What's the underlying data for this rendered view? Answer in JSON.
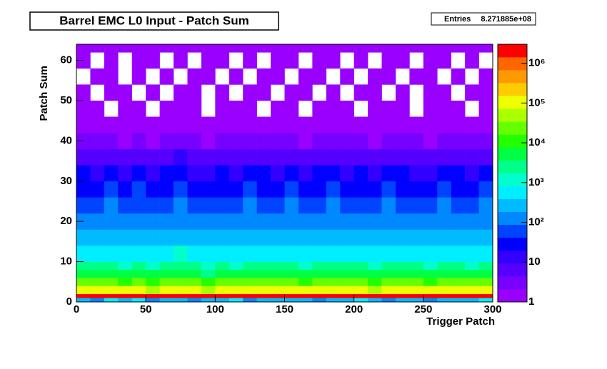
{
  "chart_data": {
    "type": "heatmap",
    "title": "Barrel EMC L0 Input - Patch Sum",
    "stats_label": "Entries",
    "stats_value": "8.271885e+08",
    "xlabel": "Trigger Patch",
    "ylabel": "Patch Sum",
    "xlim": [
      0,
      300
    ],
    "ylim": [
      0,
      64
    ],
    "zlim": [
      1,
      3000000
    ],
    "zlog": true,
    "xticks": [
      0,
      50,
      100,
      150,
      200,
      250,
      300
    ],
    "yticks": [
      0,
      10,
      20,
      30,
      40,
      50,
      60
    ],
    "zticks": [
      1,
      10,
      {
        "value": 100,
        "label": "10²"
      },
      {
        "value": 1000,
        "label": "10³"
      },
      {
        "value": 10000,
        "label": "10⁴"
      },
      {
        "value": 100000,
        "label": "10⁵"
      },
      {
        "value": 1000000,
        "label": "10⁶"
      }
    ],
    "palette": [
      "#9900ff",
      "#7700ff",
      "#5500ff",
      "#3300ff",
      "#0000ff",
      "#0044ff",
      "#0088ff",
      "#00bbff",
      "#00eeff",
      "#00ffcc",
      "#00ff88",
      "#00ff44",
      "#22ff00",
      "#66ff00",
      "#aaff00",
      "#eeff00",
      "#ffcc00",
      "#ff9900",
      "#ff6600",
      "#ff0000"
    ],
    "xbins": [
      0,
      10,
      20,
      30,
      40,
      50,
      60,
      70,
      80,
      90,
      100,
      110,
      120,
      130,
      140,
      150,
      160,
      170,
      180,
      190,
      200,
      210,
      220,
      230,
      240,
      250,
      260,
      270,
      280,
      290,
      300
    ],
    "ybins": [
      0,
      1,
      2,
      4,
      6,
      8,
      10,
      14,
      18,
      22,
      26,
      30,
      34,
      38,
      42,
      46,
      50,
      54,
      58,
      62,
      64
    ],
    "values": [
      [
        300,
        150,
        400,
        200,
        500,
        120,
        300,
        250,
        180,
        350,
        220,
        400,
        160,
        300,
        260,
        200,
        380,
        150,
        300,
        240,
        500,
        200,
        180,
        300,
        260,
        150,
        350,
        220,
        300,
        400
      ],
      [
        2000000,
        1800000,
        2000000,
        1500000,
        2000000,
        2200000,
        1900000,
        2000000,
        1600000,
        2000000,
        2100000,
        1500000,
        2000000,
        1800000,
        2000000,
        1900000,
        2000000,
        1700000,
        2000000,
        2100000,
        1800000,
        2000000,
        1900000,
        2000000,
        1500000,
        2000000,
        1800000,
        2000000,
        1600000,
        2000000
      ],
      [
        100000,
        80000,
        120000,
        90000,
        110000,
        70000,
        100000,
        130000,
        90000,
        60000,
        100000,
        80000,
        120000,
        100000,
        90000,
        110000,
        80000,
        100000,
        120000,
        90000,
        100000,
        70000,
        110000,
        100000,
        90000,
        80000,
        120000,
        100000,
        90000,
        110000
      ],
      [
        20000,
        18000,
        25000,
        16000,
        22000,
        15000,
        20000,
        24000,
        18000,
        14000,
        21000,
        17000,
        23000,
        20000,
        18000,
        22000,
        16000,
        20000,
        24000,
        19000,
        21000,
        15000,
        22000,
        20000,
        18000,
        16000,
        23000,
        20000,
        17000,
        22000
      ],
      [
        5000,
        4500,
        6000,
        4000,
        5500,
        3800,
        5000,
        6000,
        4500,
        3500,
        5200,
        4200,
        5800,
        5000,
        4600,
        5400,
        4000,
        5000,
        6000,
        4800,
        5200,
        3800,
        5500,
        5000,
        4500,
        4000,
        5800,
        5000,
        4200,
        5400
      ],
      [
        2000,
        1800,
        2400,
        1600,
        2200,
        1500,
        2000,
        2400,
        1800,
        1400,
        2100,
        1700,
        2300,
        2000,
        1800,
        2200,
        1600,
        2000,
        2400,
        1900,
        2100,
        1500,
        2200,
        2000,
        1800,
        1600,
        2300,
        2000,
        1700,
        2200
      ],
      [
        700,
        600,
        800,
        550,
        750,
        500,
        700,
        850,
        600,
        480,
        720,
        580,
        800,
        700,
        620,
        760,
        560,
        700,
        820,
        660,
        720,
        520,
        760,
        700,
        620,
        560,
        800,
        700,
        580,
        760
      ],
      [
        300,
        260,
        350,
        240,
        320,
        220,
        300,
        360,
        260,
        200,
        310,
        250,
        340,
        300,
        270,
        330,
        240,
        300,
        350,
        280,
        310,
        220,
        330,
        300,
        270,
        240,
        340,
        300,
        250,
        330
      ],
      [
        150,
        130,
        170,
        120,
        160,
        110,
        150,
        180,
        130,
        100,
        155,
        125,
        170,
        150,
        135,
        165,
        120,
        150,
        175,
        140,
        155,
        110,
        165,
        150,
        135,
        120,
        170,
        150,
        125,
        165
      ],
      [
        80,
        70,
        90,
        65,
        85,
        60,
        80,
        95,
        70,
        55,
        82,
        66,
        90,
        80,
        72,
        88,
        64,
        80,
        92,
        75,
        82,
        60,
        88,
        80,
        72,
        64,
        90,
        80,
        66,
        88
      ],
      [
        40,
        35,
        45,
        32,
        42,
        30,
        40,
        48,
        35,
        28,
        41,
        33,
        45,
        40,
        36,
        44,
        32,
        40,
        46,
        38,
        41,
        30,
        44,
        40,
        36,
        32,
        45,
        40,
        33,
        44
      ],
      [
        20,
        17,
        23,
        16,
        21,
        15,
        20,
        24,
        17,
        14,
        20,
        16,
        22,
        20,
        18,
        22,
        16,
        20,
        23,
        19,
        20,
        15,
        22,
        20,
        18,
        16,
        22,
        20,
        16,
        22
      ],
      [
        8,
        7,
        9,
        6,
        8,
        6,
        8,
        10,
        7,
        5,
        8,
        7,
        9,
        8,
        7,
        9,
        6,
        8,
        9,
        7,
        8,
        6,
        9,
        8,
        7,
        6,
        9,
        8,
        7,
        9
      ],
      [
        3,
        3,
        4,
        2,
        3,
        2,
        3,
        4,
        3,
        2,
        3,
        3,
        4,
        3,
        3,
        3,
        2,
        3,
        4,
        3,
        3,
        2,
        3,
        3,
        3,
        2,
        4,
        3,
        3,
        3
      ],
      [
        2,
        1,
        2,
        1,
        2,
        1,
        2,
        2,
        1,
        1,
        2,
        1,
        2,
        2,
        1,
        2,
        1,
        2,
        2,
        1,
        2,
        1,
        2,
        2,
        1,
        1,
        2,
        2,
        1,
        2
      ],
      [
        1,
        1,
        null,
        1,
        1,
        null,
        1,
        1,
        1,
        null,
        1,
        1,
        1,
        null,
        1,
        1,
        null,
        1,
        1,
        1,
        null,
        1,
        1,
        1,
        null,
        1,
        1,
        1,
        null,
        1
      ],
      [
        1,
        null,
        1,
        1,
        null,
        1,
        null,
        1,
        1,
        null,
        1,
        null,
        1,
        1,
        null,
        1,
        1,
        null,
        1,
        null,
        1,
        1,
        null,
        1,
        null,
        1,
        1,
        null,
        1,
        1
      ],
      [
        null,
        1,
        1,
        null,
        1,
        null,
        1,
        null,
        1,
        1,
        null,
        1,
        null,
        1,
        1,
        null,
        1,
        1,
        null,
        1,
        null,
        1,
        1,
        null,
        1,
        1,
        null,
        1,
        null,
        1
      ],
      [
        1,
        null,
        1,
        null,
        1,
        1,
        null,
        1,
        null,
        1,
        1,
        null,
        1,
        null,
        1,
        1,
        null,
        1,
        1,
        null,
        1,
        null,
        1,
        1,
        null,
        1,
        1,
        null,
        1,
        null
      ],
      [
        1,
        1,
        1,
        1,
        1,
        1,
        1,
        1,
        1,
        1,
        1,
        1,
        1,
        1,
        1,
        1,
        1,
        1,
        1,
        1,
        1,
        1,
        1,
        1,
        1,
        1,
        1,
        1,
        1,
        1
      ]
    ]
  }
}
